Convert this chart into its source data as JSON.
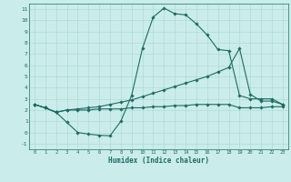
{
  "xlabel": "Humidex (Indice chaleur)",
  "background_color": "#caecea",
  "line_color": "#1e6b63",
  "grid_color": "#a8d8d4",
  "xlim": [
    -0.5,
    23.5
  ],
  "ylim": [
    -1.5,
    11.5
  ],
  "xticks": [
    0,
    1,
    2,
    3,
    4,
    5,
    6,
    7,
    8,
    9,
    10,
    11,
    12,
    13,
    14,
    15,
    16,
    17,
    18,
    19,
    20,
    21,
    22,
    23
  ],
  "yticks": [
    -1,
    0,
    1,
    2,
    3,
    4,
    5,
    6,
    7,
    8,
    9,
    10,
    11
  ],
  "line1_x": [
    0,
    1,
    2,
    3,
    4,
    5,
    6,
    7,
    8,
    9,
    10,
    11,
    12,
    13,
    14,
    15,
    16,
    17,
    18,
    19,
    20,
    21,
    22,
    23
  ],
  "line1_y": [
    2.5,
    2.2,
    1.8,
    0.9,
    0.0,
    -0.15,
    -0.25,
    -0.3,
    1.0,
    3.3,
    7.5,
    10.3,
    11.1,
    10.6,
    10.5,
    9.7,
    8.7,
    7.4,
    7.3,
    3.3,
    3.0,
    3.0,
    3.0,
    2.5
  ],
  "line2_x": [
    0,
    1,
    2,
    3,
    4,
    5,
    6,
    7,
    8,
    9,
    10,
    11,
    12,
    13,
    14,
    15,
    16,
    17,
    18,
    19,
    20,
    21,
    22,
    23
  ],
  "line2_y": [
    2.5,
    2.2,
    1.8,
    2.0,
    2.1,
    2.2,
    2.3,
    2.5,
    2.7,
    2.9,
    3.2,
    3.5,
    3.8,
    4.1,
    4.4,
    4.7,
    5.0,
    5.4,
    5.8,
    7.5,
    3.4,
    2.8,
    2.8,
    2.5
  ],
  "line3_x": [
    0,
    1,
    2,
    3,
    4,
    5,
    6,
    7,
    8,
    9,
    10,
    11,
    12,
    13,
    14,
    15,
    16,
    17,
    18,
    19,
    20,
    21,
    22,
    23
  ],
  "line3_y": [
    2.5,
    2.2,
    1.8,
    2.0,
    2.0,
    2.0,
    2.1,
    2.1,
    2.1,
    2.2,
    2.2,
    2.3,
    2.3,
    2.4,
    2.4,
    2.5,
    2.5,
    2.5,
    2.5,
    2.2,
    2.2,
    2.2,
    2.3,
    2.3
  ]
}
